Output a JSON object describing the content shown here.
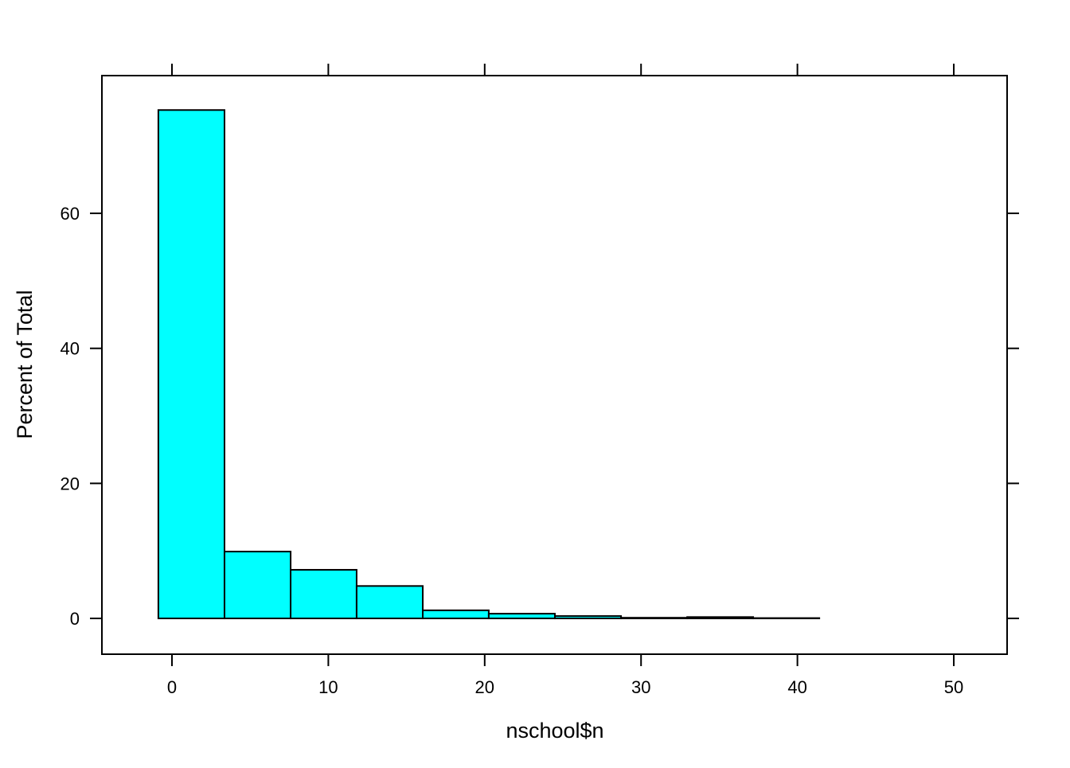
{
  "chart_data": {
    "type": "histogram",
    "xlabel": "nschool$n",
    "ylabel": "Percent of Total",
    "bins": [
      -0.87,
      3.36,
      7.59,
      11.81,
      16.04,
      20.26,
      24.49,
      28.72,
      32.95,
      37.17,
      41.4,
      45.63,
      49.86
    ],
    "values": [
      75.3,
      9.9,
      7.2,
      4.8,
      1.2,
      0.7,
      0.35,
      0.1,
      0.2,
      0.05,
      0,
      0
    ],
    "color": "#00ffff",
    "xlim": [
      -4.48,
      53.41
    ],
    "ylim": [
      -5.3,
      80.4
    ],
    "xticks": [
      0,
      10,
      20,
      30,
      40,
      50
    ],
    "yticks": [
      0,
      20,
      40,
      60
    ]
  }
}
